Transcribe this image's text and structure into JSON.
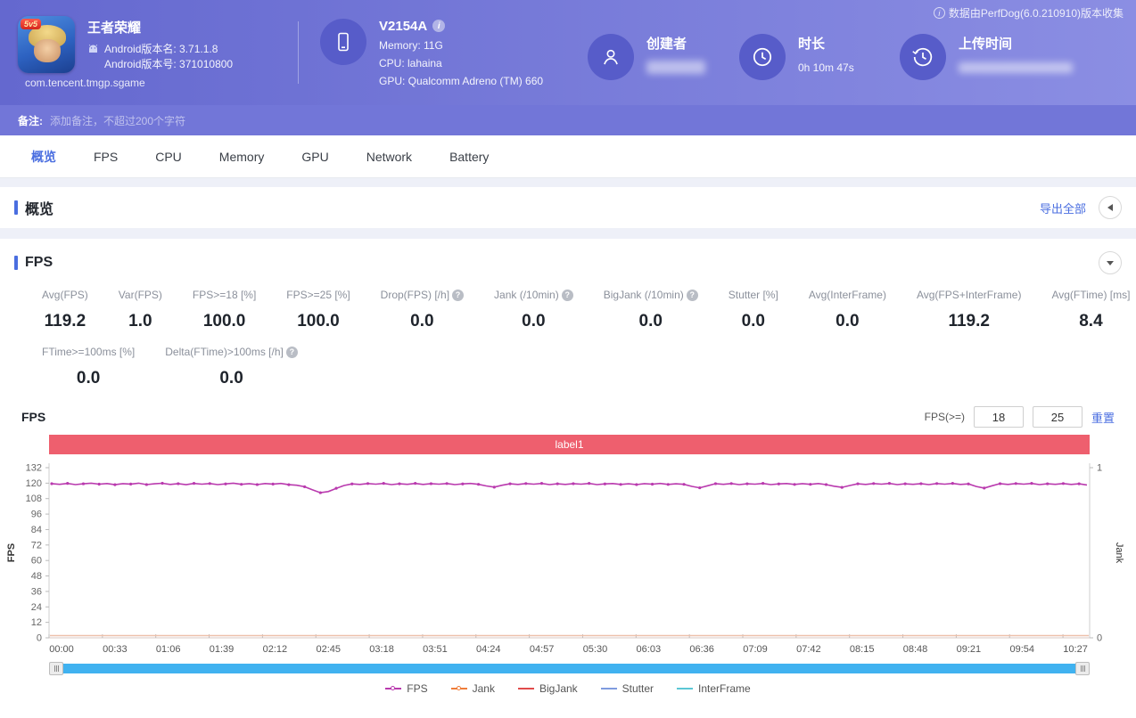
{
  "header": {
    "source_note": "数据由PerfDog(6.0.210910)版本收集",
    "app": {
      "badge": "5v5",
      "title": "王者荣耀",
      "android_version_name": "Android版本名: 3.71.1.8",
      "android_version_code": "Android版本号: 371010800",
      "package": "com.tencent.tmgp.sgame"
    },
    "device": {
      "model": "V2154A",
      "info_icon": "i",
      "memory": "Memory: 11G",
      "cpu": "CPU: lahaina",
      "gpu": "GPU: Qualcomm Adreno (TM) 660"
    },
    "creator": {
      "label": "创建者",
      "value_blurred": true
    },
    "duration": {
      "label": "时长",
      "value": "0h 10m 47s"
    },
    "upload": {
      "label": "上传时间",
      "value_blurred": true
    }
  },
  "remark": {
    "label": "备注:",
    "placeholder": "添加备注，不超过200个字符"
  },
  "tabs": [
    {
      "label": "概览",
      "active": true
    },
    {
      "label": "FPS",
      "active": false
    },
    {
      "label": "CPU",
      "active": false
    },
    {
      "label": "Memory",
      "active": false
    },
    {
      "label": "GPU",
      "active": false
    },
    {
      "label": "Network",
      "active": false
    },
    {
      "label": "Battery",
      "active": false
    }
  ],
  "overview": {
    "title": "概览",
    "export_label": "导出全部"
  },
  "fps_section": {
    "title": "FPS",
    "metrics_row1": [
      {
        "label": "Avg(FPS)",
        "value": "119.2",
        "help": false
      },
      {
        "label": "Var(FPS)",
        "value": "1.0",
        "help": false
      },
      {
        "label": "FPS>=18 [%]",
        "value": "100.0",
        "help": false
      },
      {
        "label": "FPS>=25 [%]",
        "value": "100.0",
        "help": false
      },
      {
        "label": "Drop(FPS) [/h]",
        "value": "0.0",
        "help": true
      },
      {
        "label": "Jank (/10min)",
        "value": "0.0",
        "help": true
      },
      {
        "label": "BigJank (/10min)",
        "value": "0.0",
        "help": true
      },
      {
        "label": "Stutter [%]",
        "value": "0.0",
        "help": false
      },
      {
        "label": "Avg(InterFrame)",
        "value": "0.0",
        "help": false
      },
      {
        "label": "Avg(FPS+InterFrame)",
        "value": "119.2",
        "help": false
      },
      {
        "label": "Avg(FTime) [ms]",
        "value": "8.4",
        "help": false
      }
    ],
    "metrics_row2": [
      {
        "label": "FTime>=100ms [%]",
        "value": "0.0",
        "help": false
      },
      {
        "label": "Delta(FTime)>100ms [/h]",
        "value": "0.0",
        "help": true
      }
    ],
    "chart_title": "FPS",
    "threshold": {
      "label": "FPS(>=)",
      "input1": "18",
      "input2": "25",
      "reset_label": "重置"
    },
    "help_glyph": "?"
  },
  "chart_data": {
    "type": "line",
    "band_label": "label1",
    "band_color": "#ee5f6e",
    "ylabel_left": "FPS",
    "ylabel_right": "Jank",
    "ylim_left": [
      0,
      132
    ],
    "ylim_right": [
      0,
      1
    ],
    "y_ticks_left": [
      132,
      120,
      108,
      96,
      84,
      72,
      60,
      48,
      36,
      24,
      12,
      0
    ],
    "y_ticks_right": [
      1,
      0
    ],
    "x_tick_labels": [
      "00:00",
      "00:33",
      "01:06",
      "01:39",
      "02:12",
      "02:45",
      "03:18",
      "03:51",
      "04:24",
      "04:57",
      "05:30",
      "06:03",
      "06:36",
      "07:09",
      "07:42",
      "08:15",
      "08:48",
      "09:21",
      "09:54",
      "10:27"
    ],
    "grid": false,
    "legend_position": "bottom",
    "series": [
      {
        "name": "FPS",
        "color": "#b93aae",
        "marker": true,
        "values": [
          119.6,
          119.1,
          119.8,
          118.9,
          119.5,
          120.0,
          119.2,
          119.7,
          118.8,
          119.6,
          119.3,
          120.0,
          118.9,
          119.5,
          119.9,
          119.0,
          119.6,
          118.8,
          119.8,
          119.2,
          119.7,
          118.9,
          119.4,
          120.0,
          119.1,
          119.6,
          118.9,
          119.7,
          119.3,
          119.8,
          118.8,
          118.4,
          117.2,
          114.8,
          112.6,
          113.5,
          116.0,
          118.2,
          119.4,
          119.0,
          119.7,
          119.2,
          119.8,
          118.9,
          119.5,
          119.1,
          119.8,
          119.0,
          119.6,
          119.2,
          119.7,
          118.9,
          119.4,
          119.8,
          119.1,
          117.8,
          116.9,
          118.4,
          119.5,
          119.0,
          119.7,
          119.2,
          119.8,
          118.9,
          119.5,
          119.0,
          119.6,
          119.2,
          119.8,
          118.9,
          119.4,
          119.7,
          119.0,
          119.5,
          118.9,
          119.6,
          119.2,
          119.8,
          119.0,
          119.5,
          119.1,
          117.5,
          116.4,
          118.0,
          119.6,
          119.1,
          119.7,
          118.9,
          119.5,
          119.2,
          119.8,
          118.9,
          119.4,
          119.7,
          119.0,
          119.6,
          119.1,
          119.7,
          118.9,
          117.6,
          116.7,
          118.2,
          119.5,
          119.0,
          119.7,
          119.2,
          119.8,
          118.9,
          119.5,
          119.1,
          119.6,
          118.9,
          119.7,
          119.2,
          119.8,
          119.0,
          119.4,
          117.4,
          116.2,
          118.0,
          119.6,
          119.0,
          119.7,
          119.2,
          119.8,
          118.9,
          119.5,
          119.1,
          119.7,
          119.0,
          119.5,
          118.6
        ]
      },
      {
        "name": "Jank",
        "color": "#ef7d3a",
        "marker": true,
        "constant": 0
      },
      {
        "name": "BigJank",
        "color": "#e14b4b",
        "marker": false,
        "constant": 0
      },
      {
        "name": "Stutter",
        "color": "#7f9bdf",
        "marker": false,
        "constant": 0
      },
      {
        "name": "InterFrame",
        "color": "#5bc7d5",
        "marker": false,
        "constant": 0
      }
    ],
    "zero_line_color": "#eec0ab"
  },
  "colors": {
    "accent_blue": "#4a6ee0",
    "header_left": "#6468cf",
    "header_right": "#8b8ee3",
    "scrollbar": "#40b2f0"
  }
}
